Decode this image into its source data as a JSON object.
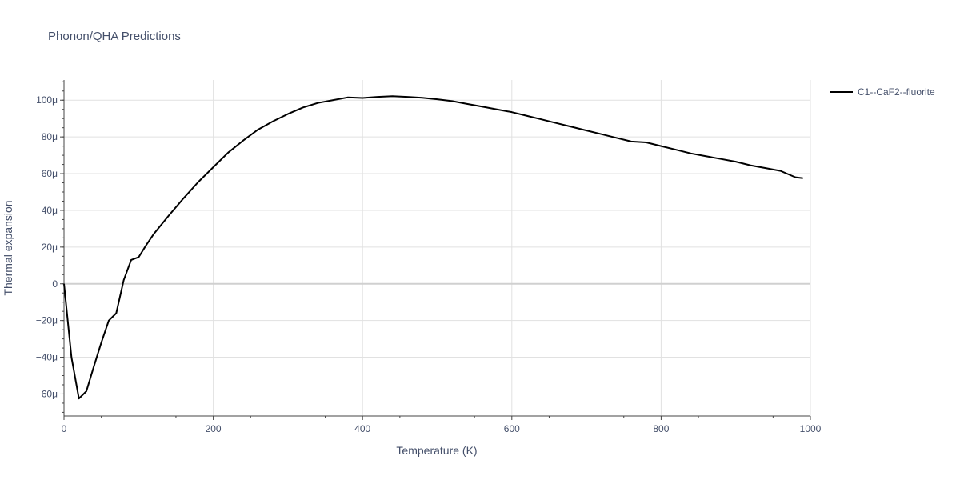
{
  "chart_data": {
    "type": "line",
    "title": "Phonon/QHA Predictions",
    "xlabel": "Temperature (K)",
    "ylabel": "Thermal expansion",
    "xlim": [
      0,
      1000
    ],
    "ylim": [
      -7.2e-05,
      0.000111
    ],
    "x_ticks": [
      0,
      200,
      400,
      600,
      800,
      1000
    ],
    "x_tick_labels": [
      "0",
      "200",
      "400",
      "600",
      "800",
      "1000"
    ],
    "y_ticks": [
      -6e-05,
      -4e-05,
      -2e-05,
      0,
      2e-05,
      4e-05,
      6e-05,
      8e-05,
      0.0001
    ],
    "y_tick_labels": [
      "−60μ",
      "−40μ",
      "−20μ",
      "0",
      "20μ",
      "40μ",
      "60μ",
      "80μ",
      "100μ"
    ],
    "grid": true,
    "legend_position": "top-right",
    "series": [
      {
        "name": "C1--CaF2--fluorite",
        "color": "#000000",
        "x": [
          0,
          10,
          20,
          30,
          40,
          50,
          60,
          70,
          80,
          90,
          100,
          110,
          120,
          140,
          160,
          180,
          200,
          220,
          240,
          260,
          280,
          300,
          320,
          340,
          360,
          380,
          400,
          420,
          440,
          460,
          480,
          500,
          520,
          540,
          560,
          580,
          600,
          620,
          640,
          660,
          680,
          700,
          720,
          740,
          760,
          780,
          800,
          820,
          840,
          860,
          880,
          900,
          920,
          940,
          960,
          980,
          990
        ],
        "y": [
          0,
          -4e-05,
          -6.25e-05,
          -5.85e-05,
          -4.5e-05,
          -3.2e-05,
          -2e-05,
          -1.6e-05,
          2e-06,
          1.3e-05,
          1.45e-05,
          2.1e-05,
          2.7e-05,
          3.7e-05,
          4.65e-05,
          5.55e-05,
          6.35e-05,
          7.15e-05,
          7.8e-05,
          8.4e-05,
          8.85e-05,
          9.25e-05,
          9.6e-05,
          9.85e-05,
          0.0001,
          0.0001015,
          0.0001012,
          0.0001018,
          0.0001022,
          0.0001018,
          0.0001013,
          0.0001005,
          9.95e-05,
          9.8e-05,
          9.65e-05,
          9.5e-05,
          9.35e-05,
          9.15e-05,
          8.95e-05,
          8.75e-05,
          8.55e-05,
          8.35e-05,
          8.15e-05,
          7.95e-05,
          7.75e-05,
          7.7e-05,
          7.5e-05,
          7.3e-05,
          7.1e-05,
          6.95e-05,
          6.8e-05,
          6.65e-05,
          6.45e-05,
          6.3e-05,
          6.15e-05,
          5.8e-05,
          5.75e-05
        ]
      }
    ]
  }
}
